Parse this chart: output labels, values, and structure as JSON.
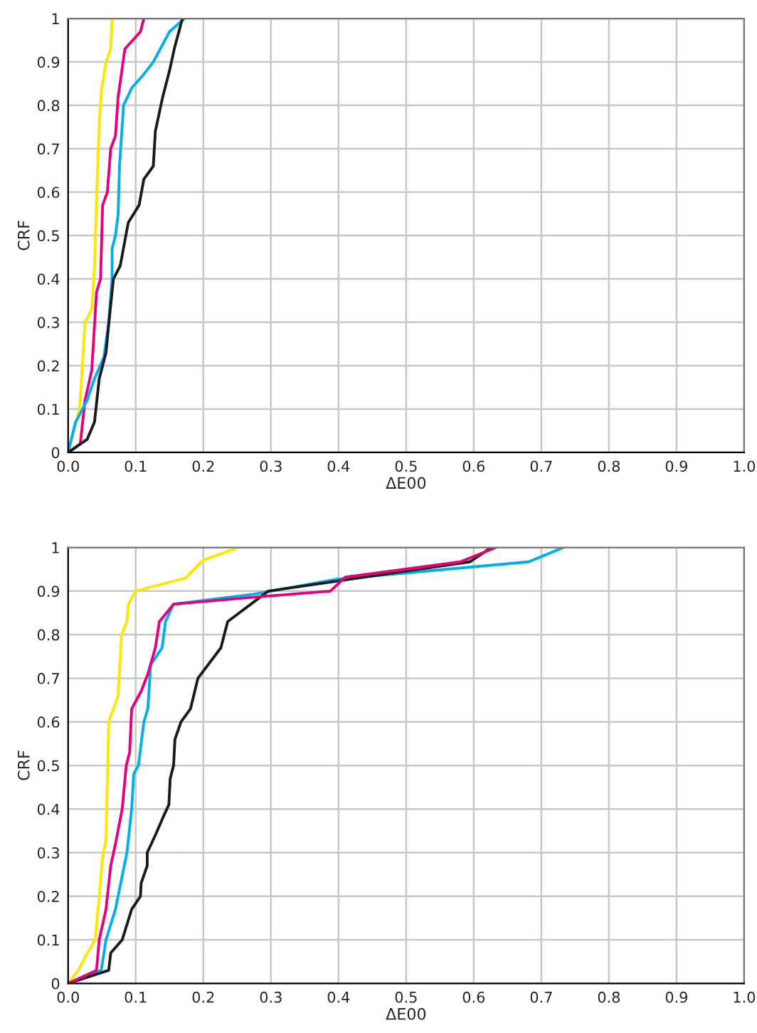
{
  "chart_data": [
    {
      "type": "line",
      "xlabel": "ΔE00",
      "ylabel": "CRF",
      "xlim": [
        0,
        1
      ],
      "ylim": [
        0,
        1
      ],
      "grid": true,
      "xticks": [
        {
          "value": 0,
          "label": "0.0"
        },
        {
          "value": 0.1,
          "label": "0.1"
        },
        {
          "value": 0.2,
          "label": "0.2"
        },
        {
          "value": 0.3,
          "label": "0.3"
        },
        {
          "value": 0.4,
          "label": "0.4"
        },
        {
          "value": 0.5,
          "label": "0.5"
        },
        {
          "value": 0.6,
          "label": "0.6"
        },
        {
          "value": 0.7,
          "label": "0.7"
        },
        {
          "value": 0.8,
          "label": "0.8"
        },
        {
          "value": 0.9,
          "label": "0.9"
        },
        {
          "value": 1,
          "label": "1.0"
        }
      ],
      "yticks": [
        0,
        0.1,
        0.2,
        0.3,
        0.4,
        0.5,
        0.6,
        0.7,
        0.8,
        0.9,
        1
      ],
      "series": [
        {
          "color": "#ffe600",
          "x": [
            0,
            0.017,
            0.021,
            0.025,
            0.035,
            0.039,
            0.042,
            0.046,
            0.049,
            0.056,
            0.063,
            0.065
          ],
          "values": [
            0,
            0.1,
            0.2,
            0.3,
            0.33,
            0.43,
            0.58,
            0.76,
            0.83,
            0.9,
            0.93,
            1.0
          ]
        },
        {
          "color": "#e6007e",
          "x": [
            0,
            0.018,
            0.025,
            0.035,
            0.042,
            0.048,
            0.051,
            0.058,
            0.063,
            0.07,
            0.074,
            0.084,
            0.107,
            0.112
          ],
          "values": [
            0,
            0.02,
            0.12,
            0.19,
            0.37,
            0.4,
            0.57,
            0.6,
            0.7,
            0.73,
            0.82,
            0.93,
            0.97,
            1.0
          ]
        },
        {
          "color": "#00aeef",
          "x": [
            0,
            0.011,
            0.028,
            0.039,
            0.053,
            0.06,
            0.065,
            0.065,
            0.07,
            0.074,
            0.076,
            0.082,
            0.094,
            0.111,
            0.126,
            0.15,
            0.172
          ],
          "values": [
            0,
            0.07,
            0.12,
            0.17,
            0.22,
            0.3,
            0.4,
            0.47,
            0.5,
            0.55,
            0.66,
            0.8,
            0.84,
            0.87,
            0.9,
            0.97,
            1.0
          ]
        },
        {
          "color": "#1a1a1a",
          "x": [
            0,
            0.028,
            0.039,
            0.046,
            0.056,
            0.061,
            0.067,
            0.077,
            0.089,
            0.105,
            0.112,
            0.126,
            0.129,
            0.14,
            0.15,
            0.157,
            0.169
          ],
          "values": [
            0,
            0.03,
            0.07,
            0.17,
            0.23,
            0.31,
            0.4,
            0.43,
            0.53,
            0.57,
            0.63,
            0.66,
            0.74,
            0.82,
            0.88,
            0.93,
            1.0
          ]
        }
      ]
    },
    {
      "type": "line",
      "xlabel": "ΔE00",
      "ylabel": "CRF",
      "xlim": [
        0,
        1
      ],
      "ylim": [
        0,
        1
      ],
      "grid": true,
      "xticks": [
        {
          "value": 0,
          "label": "0.0"
        },
        {
          "value": 0.1,
          "label": "0.1"
        },
        {
          "value": 0.2,
          "label": "0.2"
        },
        {
          "value": 0.3,
          "label": "0.3"
        },
        {
          "value": 0.4,
          "label": "0.4"
        },
        {
          "value": 0.5,
          "label": "0.5"
        },
        {
          "value": 0.6,
          "label": "0.6"
        },
        {
          "value": 0.7,
          "label": "0.7"
        },
        {
          "value": 0.8,
          "label": "0.8"
        },
        {
          "value": 0.9,
          "label": "0.9"
        },
        {
          "value": 1,
          "label": "1.0"
        }
      ],
      "yticks": [
        0,
        0.1,
        0.2,
        0.3,
        0.4,
        0.5,
        0.6,
        0.7,
        0.8,
        0.9,
        1
      ],
      "series": [
        {
          "color": "#ffe600",
          "x": [
            0,
            0.015,
            0.025,
            0.04,
            0.046,
            0.051,
            0.056,
            0.06,
            0.074,
            0.079,
            0.087,
            0.089,
            0.1,
            0.174,
            0.199,
            0.251
          ],
          "values": [
            0,
            0.03,
            0.06,
            0.1,
            0.2,
            0.29,
            0.33,
            0.6,
            0.66,
            0.8,
            0.83,
            0.87,
            0.9,
            0.93,
            0.97,
            1.0
          ]
        },
        {
          "color": "#00aeef",
          "x": [
            0,
            0.049,
            0.056,
            0.07,
            0.087,
            0.094,
            0.097,
            0.104,
            0.112,
            0.118,
            0.122,
            0.139,
            0.144,
            0.156,
            0.275,
            0.396,
            0.681,
            0.733
          ],
          "values": [
            0,
            0.03,
            0.1,
            0.17,
            0.3,
            0.4,
            0.48,
            0.5,
            0.6,
            0.63,
            0.73,
            0.77,
            0.83,
            0.87,
            0.893,
            0.927,
            0.967,
            1.0
          ]
        },
        {
          "color": "#1a1a1a",
          "x": [
            0,
            0.06,
            0.063,
            0.08,
            0.088,
            0.094,
            0.107,
            0.108,
            0.117,
            0.117,
            0.129,
            0.143,
            0.149,
            0.151,
            0.156,
            0.158,
            0.167,
            0.181,
            0.192,
            0.226,
            0.236,
            0.296,
            0.594,
            0.626
          ],
          "values": [
            0,
            0.03,
            0.07,
            0.1,
            0.14,
            0.17,
            0.2,
            0.23,
            0.27,
            0.3,
            0.34,
            0.39,
            0.41,
            0.47,
            0.5,
            0.56,
            0.6,
            0.63,
            0.7,
            0.77,
            0.83,
            0.9,
            0.967,
            1.0
          ]
        },
        {
          "color": "#e6007e",
          "x": [
            0,
            0.042,
            0.046,
            0.056,
            0.063,
            0.07,
            0.08,
            0.086,
            0.091,
            0.094,
            0.108,
            0.118,
            0.129,
            0.135,
            0.156,
            0.275,
            0.388,
            0.41,
            0.58,
            0.633
          ],
          "values": [
            0,
            0.03,
            0.1,
            0.17,
            0.27,
            0.32,
            0.4,
            0.5,
            0.53,
            0.63,
            0.67,
            0.71,
            0.77,
            0.83,
            0.87,
            0.886,
            0.9,
            0.932,
            0.967,
            1.0
          ]
        }
      ]
    }
  ]
}
